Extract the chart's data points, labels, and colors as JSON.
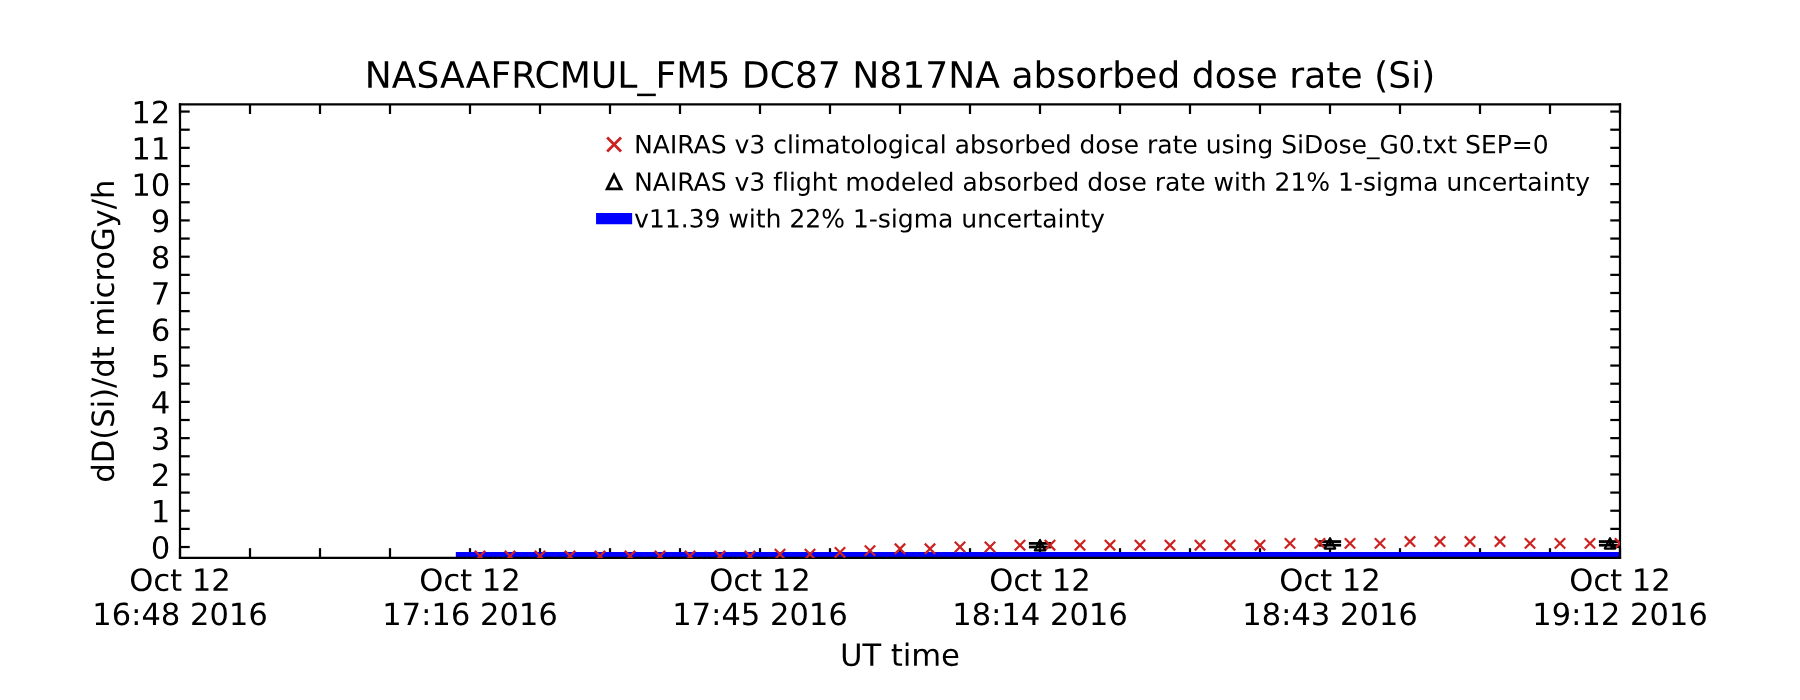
{
  "chart_data": {
    "type": "scatter",
    "title": "NASAAFRCMUL_FM5 DC87 N817NA absorbed dose rate (Si)",
    "xlabel": "UT time",
    "ylabel": "dD(Si)/dt microGy/h",
    "xlim": [
      "2016-10-12T16:48",
      "2016-10-12T19:12"
    ],
    "ylim": [
      -0.3,
      12.2
    ],
    "xticks": [
      {
        "value": "2016-10-12T16:48",
        "label": "Oct 12\n16:48 2016"
      },
      {
        "value": "2016-10-12T16:55",
        "label": null
      },
      {
        "value": "2016-10-12T17:02",
        "label": null
      },
      {
        "value": "2016-10-12T17:09",
        "label": null
      },
      {
        "value": "2016-10-12T17:17",
        "label": "Oct 12\n17:16 2016"
      },
      {
        "value": "2016-10-12T17:24",
        "label": null
      },
      {
        "value": "2016-10-12T17:31",
        "label": null
      },
      {
        "value": "2016-10-12T17:38",
        "label": null
      },
      {
        "value": "2016-10-12T17:46",
        "label": "Oct 12\n17:45 2016"
      },
      {
        "value": "2016-10-12T17:53",
        "label": null
      },
      {
        "value": "2016-10-12T18:00",
        "label": null
      },
      {
        "value": "2016-10-12T18:07",
        "label": null
      },
      {
        "value": "2016-10-12T18:14",
        "label": "Oct 12\n18:14 2016"
      },
      {
        "value": "2016-10-12T18:22",
        "label": null
      },
      {
        "value": "2016-10-12T18:29",
        "label": null
      },
      {
        "value": "2016-10-12T18:36",
        "label": null
      },
      {
        "value": "2016-10-12T18:43",
        "label": "Oct 12\n18:43 2016"
      },
      {
        "value": "2016-10-12T18:50",
        "label": null
      },
      {
        "value": "2016-10-12T18:58",
        "label": null
      },
      {
        "value": "2016-10-12T19:05",
        "label": null
      },
      {
        "value": "2016-10-12T19:12",
        "label": "Oct 12\n19:12 2016"
      }
    ],
    "yticks": [
      0,
      {
        "value": 0.5,
        "label": null
      },
      1,
      {
        "value": 1.5,
        "label": null
      },
      2,
      {
        "value": 2.5,
        "label": null
      },
      3,
      {
        "value": 3.5,
        "label": null
      },
      4,
      {
        "value": 4.5,
        "label": null
      },
      5,
      {
        "value": 5.5,
        "label": null
      },
      6,
      {
        "value": 6.5,
        "label": null
      },
      7,
      {
        "value": 7.5,
        "label": null
      },
      8,
      {
        "value": 8.5,
        "label": null
      },
      9,
      {
        "value": 9.5,
        "label": null
      },
      10,
      {
        "value": 10.5,
        "label": null
      },
      11,
      {
        "value": 11.5,
        "label": null
      },
      12
    ],
    "grid": false,
    "legend": "top right",
    "series": [
      {
        "name": "NAIRAS v3 climatological absorbed dose rate using SiDose_G0.txt SEP=0",
        "marker": "cross",
        "color": "#cc2222",
        "x": [
          "2016-10-12T17:18",
          "2016-10-12T17:21",
          "2016-10-12T17:24",
          "2016-10-12T17:27",
          "2016-10-12T17:30",
          "2016-10-12T17:33",
          "2016-10-12T17:36",
          "2016-10-12T17:39",
          "2016-10-12T17:42",
          "2016-10-12T17:45",
          "2016-10-12T17:48",
          "2016-10-12T17:51",
          "2016-10-12T17:54",
          "2016-10-12T17:57",
          "2016-10-12T18:00",
          "2016-10-12T18:03",
          "2016-10-12T18:06",
          "2016-10-12T18:09",
          "2016-10-12T18:12",
          "2016-10-12T18:15",
          "2016-10-12T18:18",
          "2016-10-12T18:21",
          "2016-10-12T18:24",
          "2016-10-12T18:27",
          "2016-10-12T18:30",
          "2016-10-12T18:33",
          "2016-10-12T18:36",
          "2016-10-12T18:39",
          "2016-10-12T18:42",
          "2016-10-12T18:45",
          "2016-10-12T18:48",
          "2016-10-12T18:51",
          "2016-10-12T18:54",
          "2016-10-12T18:57",
          "2016-10-12T19:00",
          "2016-10-12T19:03",
          "2016-10-12T19:06",
          "2016-10-12T19:09",
          "2016-10-12T19:12"
        ],
        "values": [
          -0.25,
          -0.25,
          -0.25,
          -0.25,
          -0.25,
          -0.25,
          -0.25,
          -0.25,
          -0.25,
          -0.25,
          -0.2,
          -0.2,
          -0.15,
          -0.1,
          -0.05,
          -0.05,
          0,
          0,
          0.05,
          0.05,
          0.05,
          0.05,
          0.05,
          0.05,
          0.05,
          0.05,
          0.05,
          0.1,
          0.1,
          0.1,
          0.1,
          0.15,
          0.15,
          0.15,
          0.15,
          0.1,
          0.1,
          0.1,
          0.1
        ]
      },
      {
        "name": "NAIRAS v3 flight modeled absorbed dose rate with 21% 1-sigma uncertainty",
        "marker": "triangle",
        "color": "#000000",
        "x": [
          "2016-10-12T18:14",
          "2016-10-12T18:43",
          "2016-10-12T19:11"
        ],
        "values": [
          0.05,
          0.1,
          0.1
        ],
        "errors": [
          0.05,
          0.05,
          0.05
        ]
      },
      {
        "name": "v11.39 with 22% 1-sigma uncertainty",
        "type": "line",
        "marker": "none",
        "color": "#0000ff",
        "x": [
          "2016-10-12T17:16",
          "2016-10-12T17:45",
          "2016-10-12T18:15",
          "2016-10-12T18:45",
          "2016-10-12T19:12"
        ],
        "values": [
          -0.25,
          -0.25,
          -0.25,
          -0.25,
          -0.25
        ]
      }
    ]
  }
}
